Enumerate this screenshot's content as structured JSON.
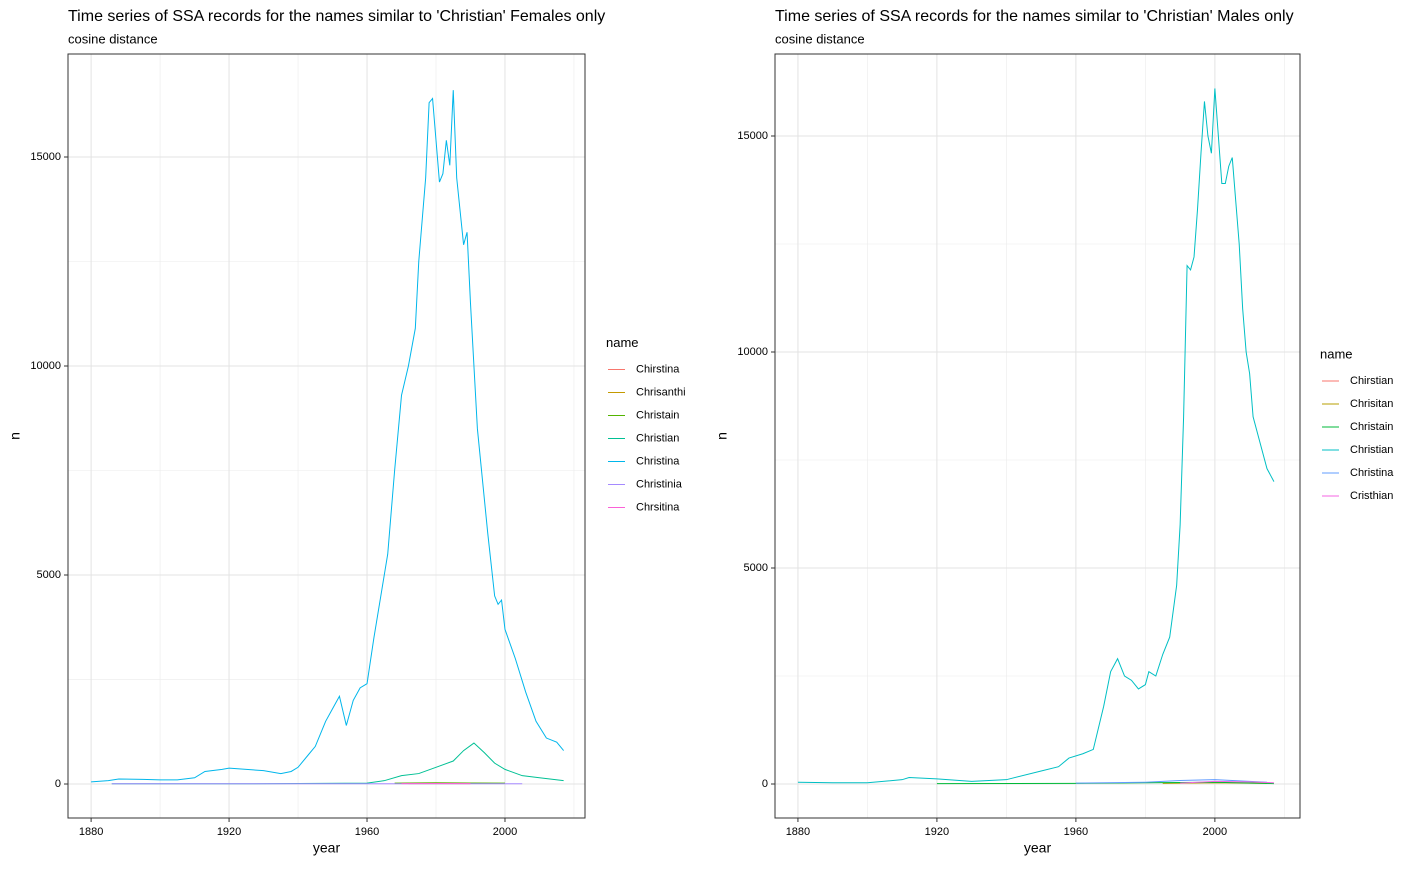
{
  "chart_data": [
    {
      "type": "line",
      "title": "Time series of SSA records for the names similar to 'Christian' Females only",
      "subtitle": "cosine distance",
      "x_label": "year",
      "y_label": "n",
      "legend_title": "name",
      "xlim": [
        1873.3,
        2023.2
      ],
      "ylim": [
        -813,
        17464
      ],
      "xticks": [
        1880,
        1920,
        1960,
        2000
      ],
      "yticks": [
        0,
        5000,
        10000,
        15000
      ],
      "x_minor_grid": [
        1900,
        1940,
        1980,
        2020
      ],
      "y_minor_grid": [
        2500,
        7500,
        12500
      ],
      "grid": true,
      "legend_position": "right",
      "series": [
        {
          "name": "Chirstina",
          "color": "#F8766D",
          "x": [
            1975,
            1985,
            1995
          ],
          "values": [
            15,
            20,
            15
          ]
        },
        {
          "name": "Chrisanthi",
          "color": "#C49A00",
          "x": [
            1972,
            1980,
            1990
          ],
          "values": [
            8,
            10,
            8
          ]
        },
        {
          "name": "Christain",
          "color": "#53B400",
          "x": [
            1968,
            1980,
            1990,
            2000
          ],
          "values": [
            20,
            30,
            25,
            20
          ]
        },
        {
          "name": "Christian",
          "color": "#00C094",
          "x": [
            1886,
            1920,
            1960,
            1965,
            1970,
            1975,
            1980,
            1985,
            1988,
            1991,
            1994,
            1997,
            2000,
            2005,
            2010,
            2017
          ],
          "values": [
            5,
            5,
            20,
            80,
            200,
            250,
            400,
            550,
            800,
            980,
            750,
            500,
            350,
            200,
            150,
            80
          ]
        },
        {
          "name": "Christina",
          "color": "#00B6EB",
          "x": [
            1880,
            1885,
            1888,
            1895,
            1900,
            1905,
            1910,
            1913,
            1918,
            1920,
            1925,
            1930,
            1935,
            1938,
            1940,
            1943,
            1945,
            1948,
            1950,
            1952,
            1954,
            1956,
            1958,
            1960,
            1962,
            1964,
            1966,
            1968,
            1970,
            1972,
            1974,
            1975,
            1977,
            1978,
            1979,
            1981,
            1982,
            1983,
            1984,
            1985,
            1986,
            1988,
            1989,
            1990,
            1992,
            1995,
            1997,
            1998,
            1999,
            2000,
            2003,
            2006,
            2009,
            2012,
            2015,
            2017
          ],
          "values": [
            50,
            80,
            120,
            110,
            100,
            100,
            150,
            300,
            350,
            380,
            350,
            320,
            250,
            300,
            400,
            700,
            900,
            1500,
            1800,
            2100,
            1400,
            2000,
            2300,
            2400,
            3500,
            4500,
            5500,
            7500,
            9300,
            10000,
            10900,
            12500,
            14500,
            16300,
            16400,
            14400,
            14600,
            15400,
            14800,
            16600,
            14500,
            12900,
            13200,
            11500,
            8500,
            6000,
            4500,
            4300,
            4400,
            3700,
            3000,
            2200,
            1500,
            1100,
            1000,
            800
          ]
        },
        {
          "name": "Christinia",
          "color": "#A58AFF",
          "x": [
            1886,
            1950,
            2005
          ],
          "values": [
            5,
            5,
            5
          ]
        },
        {
          "name": "Chrsitina",
          "color": "#FB61D7",
          "x": [
            1970,
            1980,
            1990
          ],
          "values": [
            10,
            12,
            10
          ]
        }
      ]
    },
    {
      "type": "line",
      "title": "Time series of SSA records for the names similar to 'Christian' Males only",
      "subtitle": "cosine distance",
      "x_label": "year",
      "y_label": "n",
      "legend_title": "name",
      "xlim": [
        1873.4,
        2024.5
      ],
      "ylim": [
        -787,
        16898
      ],
      "xticks": [
        1880,
        1920,
        1960,
        2000
      ],
      "yticks": [
        0,
        5000,
        10000,
        15000
      ],
      "x_minor_grid": [
        1900,
        1940,
        1980,
        2020
      ],
      "y_minor_grid": [
        2500,
        7500,
        12500
      ],
      "grid": true,
      "legend_position": "right",
      "series": [
        {
          "name": "Chirstian",
          "color": "#F8766D",
          "x": [
            1985,
            2000,
            2015
          ],
          "values": [
            20,
            40,
            20
          ]
        },
        {
          "name": "Chrisitan",
          "color": "#B79F00",
          "x": [
            1985,
            2000,
            2015
          ],
          "values": [
            15,
            30,
            15
          ]
        },
        {
          "name": "Christain",
          "color": "#00BA38",
          "x": [
            1920,
            1960,
            1980,
            2000,
            2017
          ],
          "values": [
            10,
            15,
            30,
            40,
            10
          ]
        },
        {
          "name": "Christian",
          "color": "#00BFC4",
          "x": [
            1880,
            1890,
            1900,
            1910,
            1912,
            1920,
            1930,
            1940,
            1950,
            1955,
            1958,
            1962,
            1965,
            1968,
            1970,
            1972,
            1974,
            1976,
            1978,
            1980,
            1981,
            1983,
            1985,
            1987,
            1989,
            1990,
            1991,
            1992,
            1993,
            1994,
            1995,
            1996,
            1997,
            1998,
            1999,
            2000,
            2001,
            2002,
            2003,
            2004,
            2005,
            2006,
            2007,
            2008,
            2009,
            2010,
            2011,
            2013,
            2015,
            2017
          ],
          "values": [
            40,
            30,
            30,
            100,
            150,
            120,
            60,
            100,
            300,
            400,
            600,
            700,
            800,
            1800,
            2600,
            2900,
            2500,
            2400,
            2200,
            2300,
            2600,
            2500,
            3000,
            3400,
            4600,
            6000,
            8500,
            12000,
            11900,
            12200,
            13300,
            14600,
            15800,
            15000,
            14600,
            16100,
            15000,
            13900,
            13900,
            14300,
            14500,
            13500,
            12500,
            11000,
            10000,
            9500,
            8500,
            7900,
            7300,
            7000
          ]
        },
        {
          "name": "Christina",
          "color": "#619CFF",
          "x": [
            1960,
            1980,
            1990,
            2000,
            2010,
            2015
          ],
          "values": [
            20,
            40,
            80,
            100,
            60,
            40
          ]
        },
        {
          "name": "Cristhian",
          "color": "#F564E3",
          "x": [
            1990,
            2000,
            2010,
            2017
          ],
          "values": [
            20,
            60,
            50,
            30
          ]
        }
      ]
    }
  ]
}
